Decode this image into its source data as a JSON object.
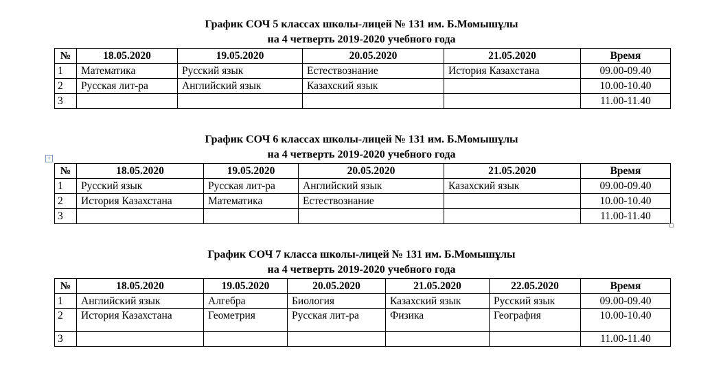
{
  "schedules": [
    {
      "title": "График СОЧ 5 классах школы-лицей № 131 им. Б.Момышұлы",
      "subtitle": "на 4 четверть 2019-2020 учебного года",
      "headers": [
        "№",
        "18.05.2020",
        "19.05.2020",
        "20.05.2020",
        "21.05.2020",
        "Время"
      ],
      "rows": [
        [
          "1",
          "Математика",
          "Русский язык",
          "Естествознание",
          "История Казахстана",
          "09.00-09.40"
        ],
        [
          "2",
          "Русская лит-ра",
          "Английский язык",
          "Казахский язык",
          "",
          "10.00-10.40"
        ],
        [
          "3",
          "",
          "",
          "",
          "",
          "11.00-11.40"
        ]
      ]
    },
    {
      "title": "График СОЧ 6 классах школы-лицей № 131 им. Б.Момышұлы",
      "subtitle": "на 4 четверть 2019-2020 учебного года",
      "headers": [
        "№",
        "18.05.2020",
        "19.05.2020",
        "20.05.2020",
        "21.05.2020",
        "Время"
      ],
      "rows": [
        [
          "1",
          "Русский язык",
          "Русская лит-ра",
          "Английский язык",
          "Казахский язык",
          "09.00-09.40"
        ],
        [
          "2",
          "История Казахстана",
          "Математика",
          "Естествознание",
          "",
          "10.00-10.40"
        ],
        [
          "3",
          "",
          "",
          "",
          "",
          "11.00-11.40"
        ]
      ]
    },
    {
      "title": "График СОЧ  7  класса школы-лицей № 131 им. Б.Момышұлы",
      "subtitle": "на 4 четверть 2019-2020 учебного года",
      "headers": [
        "№",
        "18.05.2020",
        "19.05.2020",
        "20.05.2020",
        "21.05.2020",
        "22.05.2020",
        "Время"
      ],
      "rows": [
        [
          "1",
          "Английский язык",
          "Алгебра",
          "Биология",
          "Казахский язык",
          "Русский язык",
          "09.00-09.40"
        ],
        [
          "2",
          "История Казахстана",
          "Геометрия",
          "Русская лит-ра",
          "Физика",
          "География",
          "10.00-10.40"
        ],
        [
          "3",
          "",
          "",
          "",
          "",
          "",
          "11.00-11.40"
        ]
      ]
    }
  ]
}
